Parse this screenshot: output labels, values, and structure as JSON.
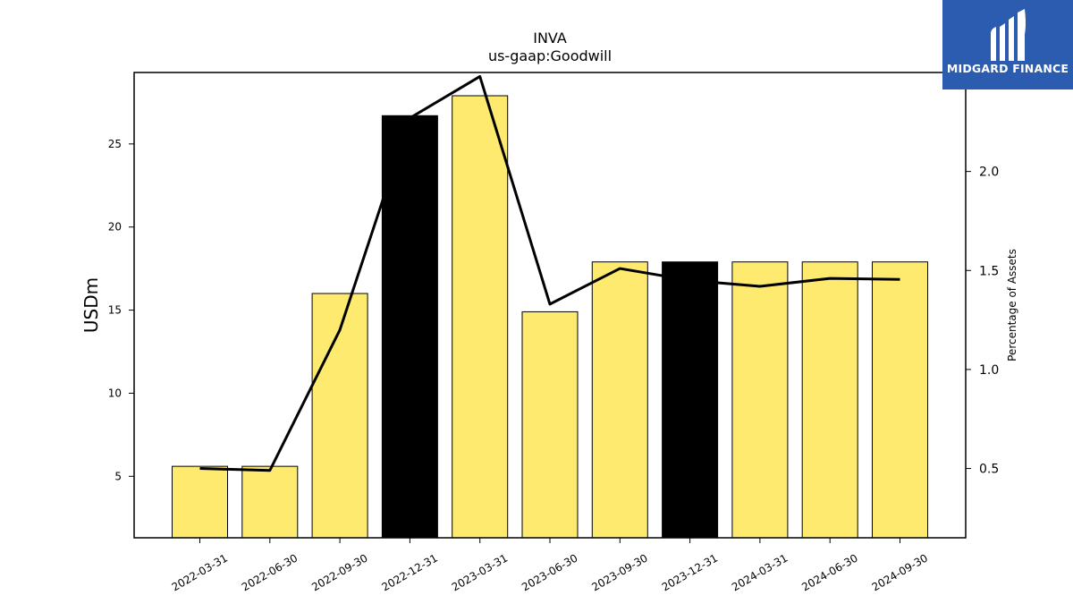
{
  "chart_data": {
    "type": "bar",
    "title": "INVA",
    "subtitle": "us-gaap:Goodwill",
    "ylabel": "USDm",
    "y2label": "Percentage of Assets",
    "categories": [
      "2022-03-31",
      "2022-06-30",
      "2022-09-30",
      "2022-12-31",
      "2023-03-31",
      "2023-06-30",
      "2023-09-30",
      "2023-12-31",
      "2024-03-31",
      "2024-06-30",
      "2024-09-30"
    ],
    "series": [
      {
        "axis": "left",
        "kind": "bar",
        "values": [
          5.6,
          5.6,
          16.0,
          26.7,
          27.9,
          14.9,
          17.9,
          17.9,
          17.9,
          17.9,
          17.9
        ],
        "colors": [
          "#fdea6f",
          "#fdea6f",
          "#fdea6f",
          "#000000",
          "#fdea6f",
          "#fdea6f",
          "#fdea6f",
          "#000000",
          "#fdea6f",
          "#fdea6f",
          "#fdea6f"
        ]
      },
      {
        "axis": "right",
        "kind": "line",
        "color": "#000000",
        "values": [
          0.5,
          0.49,
          1.2,
          2.27,
          2.48,
          1.33,
          1.51,
          1.45,
          1.42,
          1.46,
          1.455
        ]
      }
    ],
    "ylim": [
      1.3,
      29.3
    ],
    "yticks": [
      5,
      10,
      15,
      20,
      25
    ],
    "y2lim": [
      0.15,
      2.5
    ],
    "y2ticks": [
      "0.5",
      "1.0",
      "1.5",
      "2.0"
    ],
    "grid": false
  },
  "logo": {
    "text": "MIDGARD FINANCE",
    "bg_color": "#2c5cb0"
  }
}
